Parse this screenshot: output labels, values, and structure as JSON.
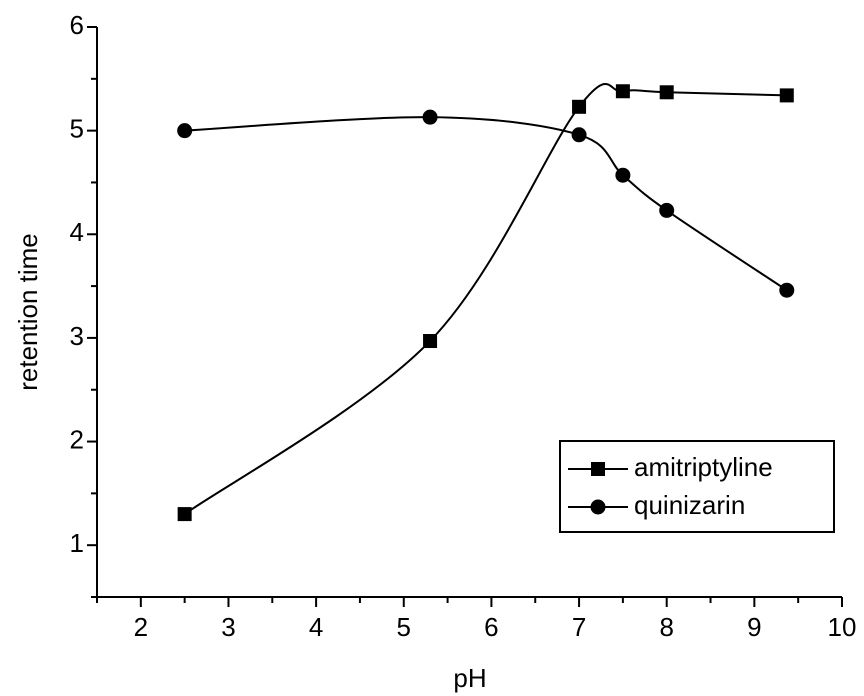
{
  "chart_data": {
    "type": "line",
    "x_label": "pH",
    "y_label": "retention time",
    "xlim": [
      1.5,
      10
    ],
    "xticks": [
      2,
      3,
      4,
      5,
      6,
      7,
      8,
      9,
      10
    ],
    "ylim": [
      0.5,
      6
    ],
    "yticks": [
      1,
      2,
      3,
      4,
      5,
      6
    ],
    "legend": "lower right",
    "series": [
      {
        "name": "amitriptyline",
        "color": "#000000",
        "marker": "square",
        "x": [
          2.5,
          5.3,
          7,
          7.5,
          8,
          9.37
        ],
        "values": [
          1.3,
          2.97,
          5.23,
          5.38,
          5.37,
          5.34
        ]
      },
      {
        "name": "quinizarin",
        "color": "#000000",
        "marker": "circle",
        "x": [
          2.5,
          5.3,
          7,
          7.5,
          8,
          9.37
        ],
        "values": [
          5.0,
          5.13,
          4.96,
          4.57,
          4.23,
          3.46
        ]
      }
    ]
  }
}
